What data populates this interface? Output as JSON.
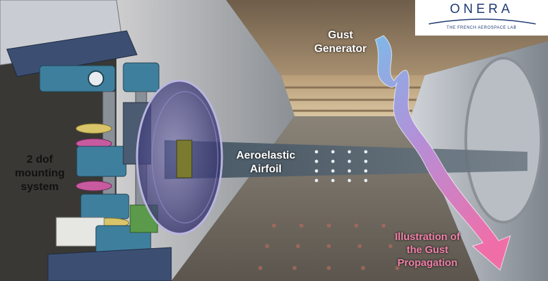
{
  "logo": {
    "wordmark": "ONERA",
    "tagline": "THE FRENCH AEROSPACE LAB"
  },
  "labels": {
    "mounting_system": [
      "2 dof",
      "mounting",
      "system"
    ],
    "gust_generator": [
      "Gust",
      "Generator"
    ],
    "aeroelastic_airfoil": [
      "Aeroelastic",
      "Airfoil"
    ],
    "gust_propagation": [
      "Illustration of",
      "the Gust",
      "Propagation"
    ]
  },
  "colors": {
    "logo_blue": "#1f3a73",
    "propagation_text": "#f080a8",
    "arrow_start": "#7fb8e8",
    "arrow_end": "#f06ea8",
    "mount_teal": "#3f7f9e",
    "mount_yellow": "#d9c46a",
    "mount_magenta": "#c85aa0"
  }
}
